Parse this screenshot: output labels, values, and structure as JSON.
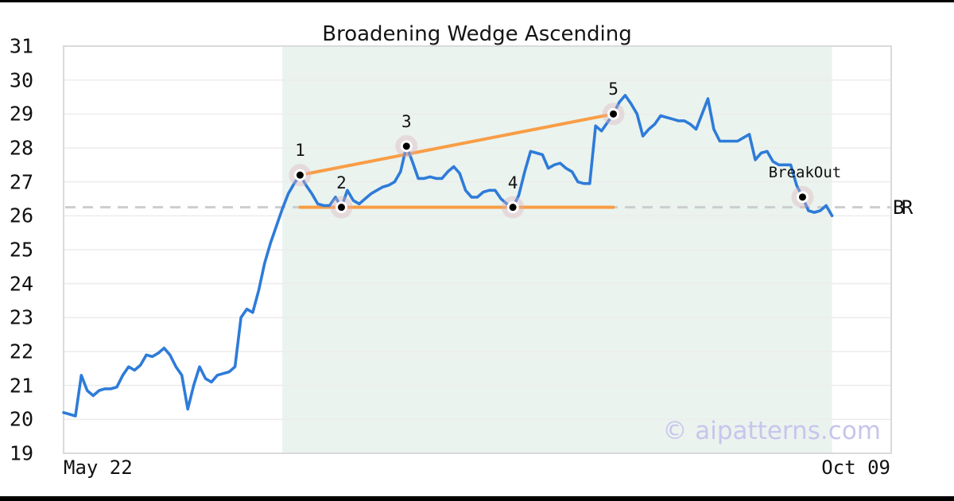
{
  "title": "Broadening Wedge Ascending",
  "watermark": "© aipatterns.com",
  "x_axis": {
    "start_label": "May 22",
    "end_label": "Oct 09"
  },
  "level_labels": {
    "b": "B",
    "r": "R"
  },
  "colors": {
    "price_line": "#2e7bd9",
    "trend_line": "#f99d45",
    "dashed_level": "#cbced1",
    "pattern_shade": "#eaf3ee",
    "grid": "#ececec",
    "spine": "#d9dadc",
    "marker_halo": "rgba(221,178,190,0.38)",
    "marker_ring": "#ffffff",
    "marker_dot": "#000000",
    "label_text": "#111111"
  },
  "chart_data": {
    "type": "line",
    "title": "Broadening Wedge Ascending",
    "xlabel": "",
    "ylabel": "",
    "x_start_label": "May 22",
    "x_end_label": "Oct 09",
    "x_total_days": 140,
    "ylim": [
      19,
      31
    ],
    "y_ticks": [
      31,
      30,
      29,
      28,
      27,
      26,
      25,
      24,
      23,
      22,
      21,
      20,
      19
    ],
    "grid": true,
    "series": [
      {
        "name": "price",
        "values": [
          20.2,
          20.15,
          20.1,
          21.3,
          20.85,
          20.7,
          20.85,
          20.9,
          20.9,
          20.95,
          21.3,
          21.55,
          21.45,
          21.6,
          21.9,
          21.85,
          21.95,
          22.1,
          21.9,
          21.55,
          21.3,
          20.3,
          21.0,
          21.55,
          21.2,
          21.1,
          21.3,
          21.35,
          21.4,
          21.55,
          23.0,
          23.25,
          23.15,
          23.8,
          24.6,
          25.2,
          25.7,
          26.2,
          26.65,
          26.95,
          27.2,
          26.9,
          26.65,
          26.35,
          26.3,
          26.3,
          26.55,
          26.25,
          26.75,
          26.45,
          26.35,
          26.5,
          26.65,
          26.75,
          26.85,
          26.9,
          27.0,
          27.3,
          28.05,
          27.6,
          27.1,
          27.1,
          27.15,
          27.1,
          27.1,
          27.3,
          27.45,
          27.25,
          26.75,
          26.55,
          26.55,
          26.7,
          26.75,
          26.75,
          26.5,
          26.35,
          26.25,
          26.6,
          27.3,
          27.9,
          27.85,
          27.8,
          27.4,
          27.5,
          27.55,
          27.4,
          27.3,
          27.0,
          26.95,
          26.95,
          28.65,
          28.5,
          28.75,
          29.0,
          29.35,
          29.55,
          29.3,
          29.0,
          28.35,
          28.55,
          28.7,
          28.95,
          28.9,
          28.85,
          28.8,
          28.8,
          28.7,
          28.55,
          29.0,
          29.45,
          28.55,
          28.2,
          28.2,
          28.2,
          28.2,
          28.3,
          28.4,
          27.65,
          27.85,
          27.9,
          27.6,
          27.5,
          27.5,
          27.5,
          26.9,
          26.55,
          26.15,
          26.1,
          26.15,
          26.3,
          26.0
        ]
      }
    ],
    "pattern_points": [
      {
        "label": "1",
        "day": 40,
        "value": 27.2
      },
      {
        "label": "2",
        "day": 47,
        "value": 26.25
      },
      {
        "label": "3",
        "day": 58,
        "value": 28.05
      },
      {
        "label": "4",
        "day": 76,
        "value": 26.25
      },
      {
        "label": "5",
        "day": 93,
        "value": 29.0
      }
    ],
    "breakout": {
      "label": "BreakOut",
      "day": 125,
      "value": 26.55
    },
    "support_level": 26.25,
    "wedge_upper_line": {
      "from": {
        "day": 40,
        "value": 27.2
      },
      "to": {
        "day": 93,
        "value": 29.0
      }
    },
    "wedge_lower_line": {
      "from": {
        "day": 40,
        "value": 26.25
      },
      "to": {
        "day": 93,
        "value": 26.25
      }
    },
    "pattern_region_days": [
      37,
      130
    ],
    "legend": "none"
  }
}
